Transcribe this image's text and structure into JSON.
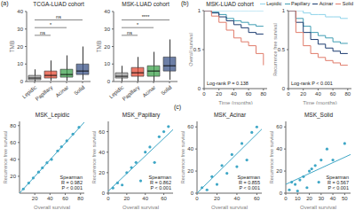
{
  "panel_labels": [
    "(a)",
    "(b)",
    "(c)"
  ],
  "chart_data": [
    {
      "type": "box",
      "title": "TCGA-LUAD cohort",
      "y_label": "TMB",
      "categories": [
        "Lepidic",
        "Papillary",
        "Acinar",
        "Solid"
      ],
      "colors": [
        "#9e9e9e",
        "#e64b35",
        "#3fa34d",
        "#3c5488"
      ],
      "boxes": [
        {
          "low": 0,
          "q1": 1,
          "median": 2,
          "q3": 3.5,
          "high": 7
        },
        {
          "low": 0.5,
          "q1": 2,
          "median": 3.5,
          "q3": 6,
          "high": 12
        },
        {
          "low": 0.5,
          "q1": 2.5,
          "median": 4,
          "q3": 7,
          "high": 15
        },
        {
          "low": 1,
          "q1": 4,
          "median": 6,
          "q3": 10,
          "high": 20
        }
      ],
      "comparisons": [
        {
          "pair": [
            "Lepidic",
            "Papillary"
          ],
          "label": "ns"
        },
        {
          "pair": [
            "Lepidic",
            "Acinar"
          ],
          "label": "*"
        },
        {
          "pair": [
            "Lepidic",
            "Solid"
          ],
          "label": "ns"
        }
      ],
      "ylim": [
        0,
        40
      ],
      "yticks": [
        0,
        10,
        20,
        30,
        40
      ]
    },
    {
      "type": "box",
      "title": "MSK-LUAD cohort",
      "y_label": "TMB",
      "categories": [
        "Lepidic",
        "Papillary",
        "Acinar",
        "Solid"
      ],
      "colors": [
        "#9e9e9e",
        "#e64b35",
        "#3fa34d",
        "#3c5488"
      ],
      "boxes": [
        {
          "low": 0,
          "q1": 2,
          "median": 3,
          "q3": 5,
          "high": 9
        },
        {
          "low": 0,
          "q1": 3,
          "median": 5,
          "q3": 8,
          "high": 14
        },
        {
          "low": 0,
          "q1": 3,
          "median": 6,
          "q3": 9,
          "high": 17
        },
        {
          "low": 1,
          "q1": 6,
          "median": 9,
          "q3": 14,
          "high": 24
        }
      ],
      "comparisons": [
        {
          "pair": [
            "Lepidic",
            "Papillary"
          ],
          "label": "ns"
        },
        {
          "pair": [
            "Lepidic",
            "Acinar"
          ],
          "label": "*"
        },
        {
          "pair": [
            "Lepidic",
            "Solid"
          ],
          "label": "****"
        }
      ],
      "ylim": [
        0,
        40
      ],
      "yticks": [
        0,
        10,
        20,
        30,
        40
      ]
    },
    {
      "type": "line",
      "title": "MSK-LUAD cohort",
      "line_style": "step",
      "x_label": "Time (months)",
      "y_label": "Overall survival",
      "x": [
        0,
        10,
        20,
        30,
        40,
        50,
        60,
        70,
        80
      ],
      "series": [
        {
          "name": "Lepidic",
          "color": "#8fd3ea",
          "values": [
            1,
            1,
            1,
            1,
            1,
            1,
            1,
            1,
            1
          ]
        },
        {
          "name": "Papillary",
          "color": "#3f9db3",
          "values": [
            1,
            0.98,
            0.95,
            0.9,
            0.87,
            0.85,
            0.82,
            0.8,
            0.8
          ]
        },
        {
          "name": "Acinar",
          "color": "#1b3b6f",
          "values": [
            1,
            0.97,
            0.92,
            0.87,
            0.82,
            0.78,
            0.72,
            0.7,
            0.7
          ]
        },
        {
          "name": "Solid",
          "color": "#e07b6a",
          "values": [
            1,
            0.93,
            0.85,
            0.75,
            0.65,
            0.6,
            0.55,
            0.45,
            0.3
          ]
        }
      ],
      "annotation": "Log-rank P = 0.138",
      "xlim": [
        0,
        85
      ],
      "xticks": [
        0,
        20,
        40,
        60,
        80
      ],
      "ylim": [
        0,
        1
      ],
      "yticks": [
        0,
        0.5,
        1
      ]
    },
    {
      "type": "line",
      "legend": "top",
      "line_style": "step",
      "x_label": "Time (months)",
      "y_label": "Recurrence free survival",
      "x": [
        0,
        10,
        20,
        30,
        40,
        50,
        60,
        70,
        80
      ],
      "series": [
        {
          "name": "Lepidic",
          "color": "#8fd3ea",
          "values": [
            1,
            1,
            0.97,
            0.95,
            0.95,
            0.92,
            0.92,
            0.9,
            0.9
          ]
        },
        {
          "name": "Papillary",
          "color": "#3f9db3",
          "values": [
            1,
            0.9,
            0.8,
            0.72,
            0.68,
            0.65,
            0.6,
            0.58,
            0.58
          ]
        },
        {
          "name": "Acinar",
          "color": "#1b3b6f",
          "values": [
            1,
            0.85,
            0.72,
            0.63,
            0.57,
            0.52,
            0.48,
            0.45,
            0.45
          ]
        },
        {
          "name": "Solid",
          "color": "#e07b6a",
          "values": [
            1,
            0.72,
            0.55,
            0.45,
            0.4,
            0.36,
            0.33,
            0.3,
            0.3
          ]
        }
      ],
      "annotation": "Log-rank P < 0.001",
      "xlim": [
        0,
        85
      ],
      "xticks": [
        0,
        20,
        40,
        60,
        80
      ],
      "ylim": [
        0,
        1
      ],
      "yticks": [
        0,
        0.5,
        1
      ]
    },
    {
      "type": "scatter",
      "title": "MSK_Lepidic",
      "x_label": "Overall survival",
      "y_label": "Recurrence free survival",
      "color": "#3fa7c6",
      "x": [
        5,
        12,
        18,
        25,
        30,
        36,
        42,
        50,
        55,
        62,
        70,
        78
      ],
      "y": [
        5,
        12,
        18,
        25,
        30,
        36,
        40,
        50,
        55,
        62,
        70,
        78
      ],
      "fit": {
        "x": [
          0,
          85
        ],
        "y": [
          0,
          84
        ]
      },
      "annotation": [
        "Spearman",
        "R = 0.982",
        "P < 0.001"
      ],
      "xlim": [
        0,
        85
      ],
      "xticks": [
        20,
        40,
        60,
        80
      ],
      "ylim": [
        0,
        85
      ],
      "yticks": [
        20,
        40,
        60,
        80
      ]
    },
    {
      "type": "scatter",
      "title": "MSK_Papillary",
      "x_label": "Overall survival",
      "y_label": "Recurrence free survival",
      "color": "#3fa7c6",
      "x": [
        5,
        10,
        15,
        20,
        25,
        30,
        35,
        40,
        45,
        50,
        55,
        60,
        65
      ],
      "y": [
        5,
        10,
        8,
        20,
        25,
        30,
        12,
        40,
        45,
        30,
        55,
        60,
        65
      ],
      "fit": {
        "x": [
          0,
          70
        ],
        "y": [
          2,
          62
        ]
      },
      "annotation": [
        "Spearman",
        "R = 0.862",
        "P < 0.001"
      ],
      "xlim": [
        0,
        70
      ],
      "xticks": [
        0,
        20,
        40,
        60
      ],
      "ylim": [
        0,
        70
      ],
      "yticks": [
        0,
        20,
        40,
        60
      ]
    },
    {
      "type": "scatter",
      "title": "MSK_Acinar",
      "x_label": "Overall survival",
      "y_label": "Recurrence free survival",
      "color": "#3fa7c6",
      "x": [
        5,
        10,
        15,
        20,
        25,
        30,
        35,
        40,
        45,
        50,
        55,
        60
      ],
      "y": [
        5,
        3,
        15,
        8,
        25,
        18,
        35,
        24,
        45,
        30,
        55,
        60
      ],
      "fit": {
        "x": [
          0,
          65
        ],
        "y": [
          0,
          58
        ]
      },
      "annotation": [
        "Spearman",
        "R = 0.855",
        "P < 0.001"
      ],
      "xlim": [
        0,
        65
      ],
      "xticks": [
        0,
        20,
        40,
        60
      ],
      "ylim": [
        0,
        65
      ],
      "yticks": [
        0,
        20,
        40,
        60
      ]
    },
    {
      "type": "scatter",
      "title": "MSK_Solid",
      "x_label": "Overall survival",
      "y_label": "Recurrence free survival",
      "color": "#3fa7c6",
      "x": [
        3,
        5,
        8,
        10,
        12,
        15,
        18,
        20,
        22,
        25,
        28,
        30,
        35,
        40,
        50
      ],
      "y": [
        3,
        10,
        8,
        2,
        12,
        15,
        5,
        20,
        22,
        25,
        10,
        30,
        40,
        30,
        45
      ],
      "fit": {
        "x": [
          0,
          55
        ],
        "y": [
          8,
          35
        ]
      },
      "annotation": [
        "Spearman",
        "R = 0.567",
        "P < 0.001"
      ],
      "xlim": [
        0,
        55
      ],
      "xticks": [
        0,
        10,
        20,
        30,
        40,
        50
      ],
      "ylim": [
        0,
        65
      ],
      "yticks": [
        0,
        20,
        40,
        60
      ]
    }
  ]
}
